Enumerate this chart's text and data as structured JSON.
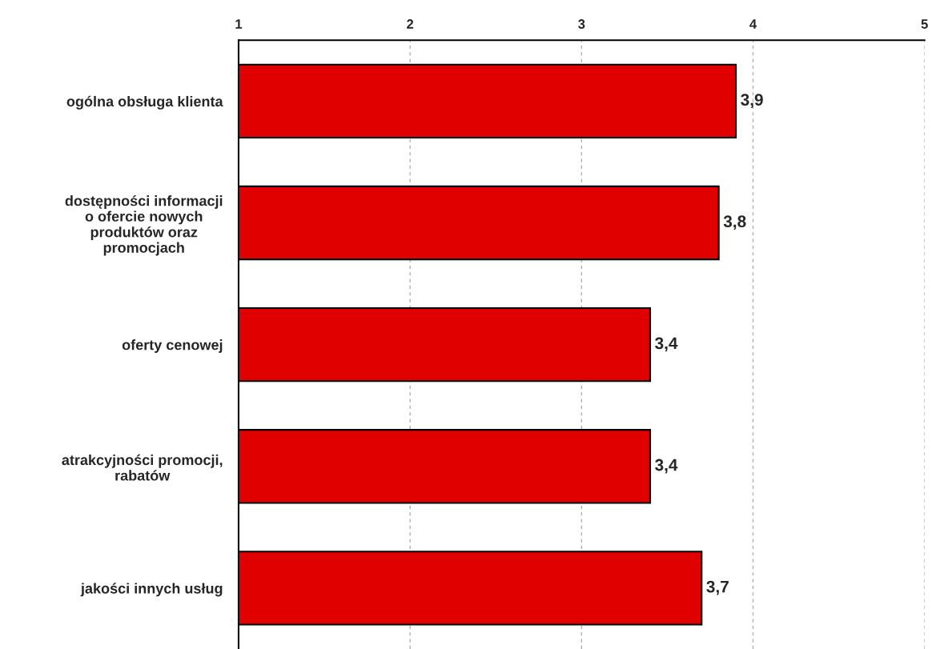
{
  "chart_data": {
    "type": "bar",
    "orientation": "horizontal",
    "categories": [
      "ogólna obsługa klienta",
      "dostępności informacji\no ofercie nowych\nproduktów oraz\npromocjach",
      "oferty cenowej",
      "atrakcyjności promocji,\nrabatów",
      "jakości innych usług"
    ],
    "values": [
      3.9,
      3.8,
      3.4,
      3.4,
      3.7
    ],
    "value_labels": [
      "3,9",
      "3,8",
      "3,4",
      "3,4",
      "3,7"
    ],
    "color": "#e00000",
    "xlim": [
      1,
      5
    ],
    "xticks": [
      1,
      2,
      3,
      4,
      5
    ],
    "grid": "x"
  }
}
